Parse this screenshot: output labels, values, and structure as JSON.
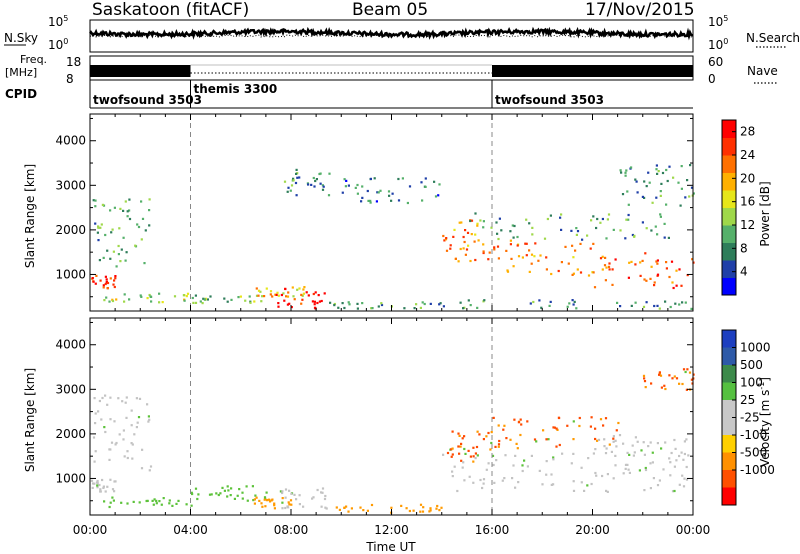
{
  "header": {
    "station": "Saskatoon (fitACF)",
    "beam": "Beam 05",
    "date": "17/Nov/2015"
  },
  "noise_panel": {
    "left_label": "N.Sky",
    "right_label": "N.Search",
    "left_ticks": [
      "10^5",
      "10^0"
    ],
    "right_ticks": [
      "10^5",
      "10^0"
    ]
  },
  "freq_panel": {
    "left_label_1": "Freq.",
    "left_label_2": "[MHz]",
    "right_label": "Nave",
    "left_ticks": [
      "18",
      "8"
    ],
    "right_ticks": [
      "60",
      "0"
    ]
  },
  "cpid_panel": {
    "label": "CPID",
    "segments": [
      {
        "start_h": 0,
        "end_h": 4,
        "text": "twofsound 3503"
      },
      {
        "start_h": 4,
        "end_h": 16,
        "text": "themis 3300"
      },
      {
        "start_h": 16,
        "end_h": 24,
        "text": "twofsound 3503"
      }
    ]
  },
  "time_axis": {
    "label": "Time UT",
    "ticks": [
      "00:00",
      "04:00",
      "08:00",
      "12:00",
      "16:00",
      "20:00",
      "00:00"
    ]
  },
  "colors": {
    "power": [
      "#0000ff",
      "#1f3fa8",
      "#2e7d5a",
      "#55b06a",
      "#9fd84a",
      "#e6e61a",
      "#ffb000",
      "#ff7000",
      "#ff3000",
      "#ff0000"
    ],
    "velocity": [
      "#1d3fc0",
      "#2e5aa8",
      "#3c8a4a",
      "#55c040",
      "#c8c8c8",
      "#c8c8c8",
      "#ffd000",
      "#ff9000",
      "#ff5000",
      "#ff0000"
    ]
  },
  "chart_data": [
    {
      "type": "heatmap",
      "name": "power",
      "ylabel": "Slant Range [km]",
      "xlabel": "",
      "ylim": [
        180,
        4600
      ],
      "xlim": [
        0,
        24
      ],
      "yticks": [
        1000,
        2000,
        3000,
        4000
      ],
      "colorbar": {
        "label": "Power [dB]",
        "ticks": [
          4,
          8,
          12,
          16,
          20,
          24,
          28
        ],
        "range": [
          0,
          30
        ]
      },
      "regions": [
        {
          "t": [
            0.0,
            1.0
          ],
          "r": [
            700,
            1000
          ],
          "v": 26
        },
        {
          "t": [
            0.1,
            2.4
          ],
          "r": [
            1200,
            2800
          ],
          "v": 10
        },
        {
          "t": [
            0.5,
            4.0
          ],
          "r": [
            400,
            600
          ],
          "v": 14
        },
        {
          "t": [
            4.0,
            7.0
          ],
          "r": [
            380,
            560
          ],
          "v": 12
        },
        {
          "t": [
            6.5,
            8.5
          ],
          "r": [
            500,
            750
          ],
          "v": 18
        },
        {
          "t": [
            7.3,
            9.5
          ],
          "r": [
            250,
            700
          ],
          "v": 28
        },
        {
          "t": [
            7.5,
            9.5
          ],
          "r": [
            2800,
            3400
          ],
          "v": 8
        },
        {
          "t": [
            9.5,
            14.0
          ],
          "r": [
            250,
            400
          ],
          "v": 10
        },
        {
          "t": [
            10.0,
            14.0
          ],
          "r": [
            2600,
            3200
          ],
          "v": 7
        },
        {
          "t": [
            14.0,
            15.5
          ],
          "r": [
            1300,
            2300
          ],
          "v": 22
        },
        {
          "t": [
            15.5,
            20.0
          ],
          "r": [
            1000,
            1800
          ],
          "v": 22
        },
        {
          "t": [
            20.0,
            24.0
          ],
          "r": [
            700,
            1500
          ],
          "v": 24
        },
        {
          "t": [
            15.0,
            23.0
          ],
          "r": [
            1800,
            2400
          ],
          "v": 10
        },
        {
          "t": [
            14.0,
            24.0
          ],
          "r": [
            250,
            450
          ],
          "v": 8
        },
        {
          "t": [
            21.0,
            24.0
          ],
          "r": [
            2500,
            3500
          ],
          "v": 8
        }
      ]
    },
    {
      "type": "heatmap",
      "name": "velocity",
      "ylabel": "Slant Range [km]",
      "xlabel": "Time UT",
      "ylim": [
        180,
        4600
      ],
      "xlim": [
        0,
        24
      ],
      "yticks": [
        1000,
        2000,
        3000,
        4000
      ],
      "colorbar": {
        "label": "Velocity [m s^-1]",
        "ticks": [
          "1000",
          "500",
          "100",
          "25",
          "-25",
          "-100",
          "-500",
          "-1000"
        ]
      },
      "regions": [
        {
          "t": [
            0.0,
            1.0
          ],
          "r": [
            700,
            1000
          ],
          "v": "gray"
        },
        {
          "t": [
            0.1,
            2.4
          ],
          "r": [
            1200,
            2900
          ],
          "v": "gray"
        },
        {
          "t": [
            0.5,
            4.0
          ],
          "r": [
            380,
            600
          ],
          "v": "green"
        },
        {
          "t": [
            4.0,
            7.0
          ],
          "r": [
            500,
            900
          ],
          "v": "green"
        },
        {
          "t": [
            6.5,
            8.0
          ],
          "r": [
            350,
            600
          ],
          "v": "orange"
        },
        {
          "t": [
            7.5,
            9.5
          ],
          "r": [
            350,
            800
          ],
          "v": "gray"
        },
        {
          "t": [
            9.5,
            14.0
          ],
          "r": [
            250,
            450
          ],
          "v": "orange"
        },
        {
          "t": [
            14.0,
            16.0
          ],
          "r": [
            1400,
            2100
          ],
          "v": "red"
        },
        {
          "t": [
            15.5,
            21.0
          ],
          "r": [
            1700,
            2400
          ],
          "v": "red"
        },
        {
          "t": [
            14.0,
            24.0
          ],
          "r": [
            700,
            1600
          ],
          "v": "gray"
        },
        {
          "t": [
            20.0,
            24.0
          ],
          "r": [
            1500,
            2000
          ],
          "v": "gray"
        },
        {
          "t": [
            22.0,
            24.0
          ],
          "r": [
            3000,
            3500
          ],
          "v": "red"
        }
      ]
    }
  ]
}
